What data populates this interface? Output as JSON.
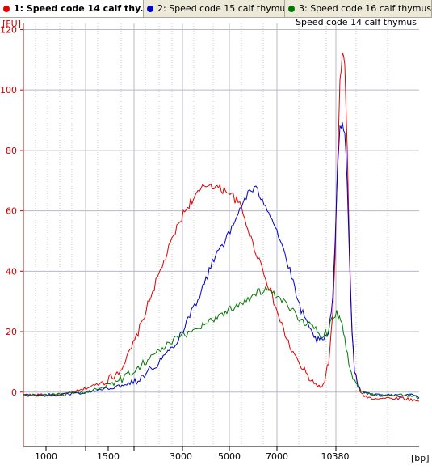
{
  "tabs": [
    {
      "label": "1: Speed code 14 calf thy...",
      "color": "#e00000",
      "active": true
    },
    {
      "label": "2: Speed code 15 calf thymus",
      "color": "#0000c8",
      "active": false
    },
    {
      "label": "3: Speed code 16 calf thymus",
      "color": "#007800",
      "active": false
    }
  ],
  "chart_data": {
    "type": "line",
    "title": "Speed code 14 calf thymus",
    "ylabel": "[FU]",
    "xlabel": "[bp]",
    "ylim": [
      -18,
      122
    ],
    "yticks": [
      0,
      20,
      40,
      60,
      80,
      100,
      120
    ],
    "x_ticks": [
      "1000",
      "1500",
      "3000",
      "5000",
      "7000",
      "10380"
    ],
    "grid": true,
    "series": [
      {
        "name": "1: Speed code 14 calf thymus",
        "color": "#e00000",
        "points": [
          [
            0,
            -1
          ],
          [
            20,
            -1
          ],
          [
            40,
            -1
          ],
          [
            55,
            -0.5
          ],
          [
            70,
            0.5
          ],
          [
            85,
            2
          ],
          [
            100,
            3.5
          ],
          [
            110,
            5
          ],
          [
            118,
            7
          ],
          [
            128,
            11
          ],
          [
            138,
            17
          ],
          [
            148,
            24
          ],
          [
            158,
            32
          ],
          [
            168,
            39
          ],
          [
            178,
            46
          ],
          [
            188,
            53
          ],
          [
            198,
            59
          ],
          [
            207,
            63
          ],
          [
            214,
            65
          ],
          [
            222,
            67.5
          ],
          [
            230,
            69
          ],
          [
            238,
            68
          ],
          [
            245,
            67
          ],
          [
            252,
            67
          ],
          [
            260,
            64.5
          ],
          [
            268,
            62
          ],
          [
            276,
            56
          ],
          [
            284,
            49
          ],
          [
            292,
            44
          ],
          [
            300,
            38
          ],
          [
            310,
            30
          ],
          [
            320,
            22
          ],
          [
            330,
            15
          ],
          [
            340,
            10
          ],
          [
            350,
            6
          ],
          [
            360,
            3
          ],
          [
            368,
            1.5
          ],
          [
            373,
            3
          ],
          [
            378,
            10
          ],
          [
            383,
            25
          ],
          [
            386,
            45
          ],
          [
            389,
            75
          ],
          [
            392,
            102
          ],
          [
            395,
            113
          ],
          [
            398,
            108
          ],
          [
            401,
            80
          ],
          [
            404,
            45
          ],
          [
            407,
            20
          ],
          [
            410,
            7
          ],
          [
            414,
            2
          ],
          [
            420,
            -1
          ],
          [
            430,
            -2
          ],
          [
            450,
            -2
          ],
          [
            470,
            -2
          ],
          [
            490,
            -3
          ]
        ]
      },
      {
        "name": "2: Speed code 15 calf thymus",
        "color": "#0000c8",
        "points": [
          [
            0,
            -1
          ],
          [
            20,
            -1
          ],
          [
            40,
            -1
          ],
          [
            60,
            -0.5
          ],
          [
            80,
            0
          ],
          [
            100,
            1
          ],
          [
            120,
            2
          ],
          [
            140,
            4
          ],
          [
            160,
            8
          ],
          [
            175,
            12
          ],
          [
            190,
            17
          ],
          [
            200,
            22
          ],
          [
            210,
            28
          ],
          [
            220,
            33
          ],
          [
            230,
            40
          ],
          [
            240,
            47
          ],
          [
            250,
            50
          ],
          [
            260,
            55
          ],
          [
            270,
            62
          ],
          [
            280,
            66.5
          ],
          [
            288,
            67
          ],
          [
            296,
            64
          ],
          [
            304,
            60
          ],
          [
            312,
            55
          ],
          [
            320,
            49
          ],
          [
            330,
            40
          ],
          [
            340,
            30
          ],
          [
            350,
            23
          ],
          [
            358,
            19
          ],
          [
            365,
            17
          ],
          [
            372,
            17
          ],
          [
            378,
            20
          ],
          [
            383,
            30
          ],
          [
            386,
            50
          ],
          [
            389,
            75
          ],
          [
            392,
            87
          ],
          [
            395,
            90
          ],
          [
            398,
            86
          ],
          [
            401,
            70
          ],
          [
            404,
            42
          ],
          [
            407,
            20
          ],
          [
            410,
            8
          ],
          [
            414,
            2
          ],
          [
            420,
            0
          ],
          [
            440,
            -1
          ],
          [
            460,
            -1
          ],
          [
            480,
            -1
          ],
          [
            490,
            -2
          ]
        ]
      },
      {
        "name": "3: Speed code 16 calf thymus",
        "color": "#007800",
        "points": [
          [
            0,
            -1
          ],
          [
            20,
            -1
          ],
          [
            40,
            -1
          ],
          [
            60,
            -0.5
          ],
          [
            80,
            0
          ],
          [
            100,
            2
          ],
          [
            120,
            4
          ],
          [
            140,
            8
          ],
          [
            160,
            12
          ],
          [
            180,
            16
          ],
          [
            200,
            19
          ],
          [
            220,
            22
          ],
          [
            240,
            25
          ],
          [
            260,
            28
          ],
          [
            270,
            30
          ],
          [
            280,
            31
          ],
          [
            290,
            33
          ],
          [
            300,
            34
          ],
          [
            310,
            32
          ],
          [
            320,
            30
          ],
          [
            330,
            28
          ],
          [
            340,
            25
          ],
          [
            350,
            23
          ],
          [
            360,
            21
          ],
          [
            370,
            19
          ],
          [
            376,
            20
          ],
          [
            382,
            25
          ],
          [
            388,
            26
          ],
          [
            393,
            24
          ],
          [
            398,
            18
          ],
          [
            403,
            10
          ],
          [
            408,
            5
          ],
          [
            414,
            2
          ],
          [
            420,
            0
          ],
          [
            440,
            -1
          ],
          [
            460,
            -1
          ],
          [
            480,
            -1
          ],
          [
            490,
            -2
          ]
        ]
      }
    ]
  }
}
